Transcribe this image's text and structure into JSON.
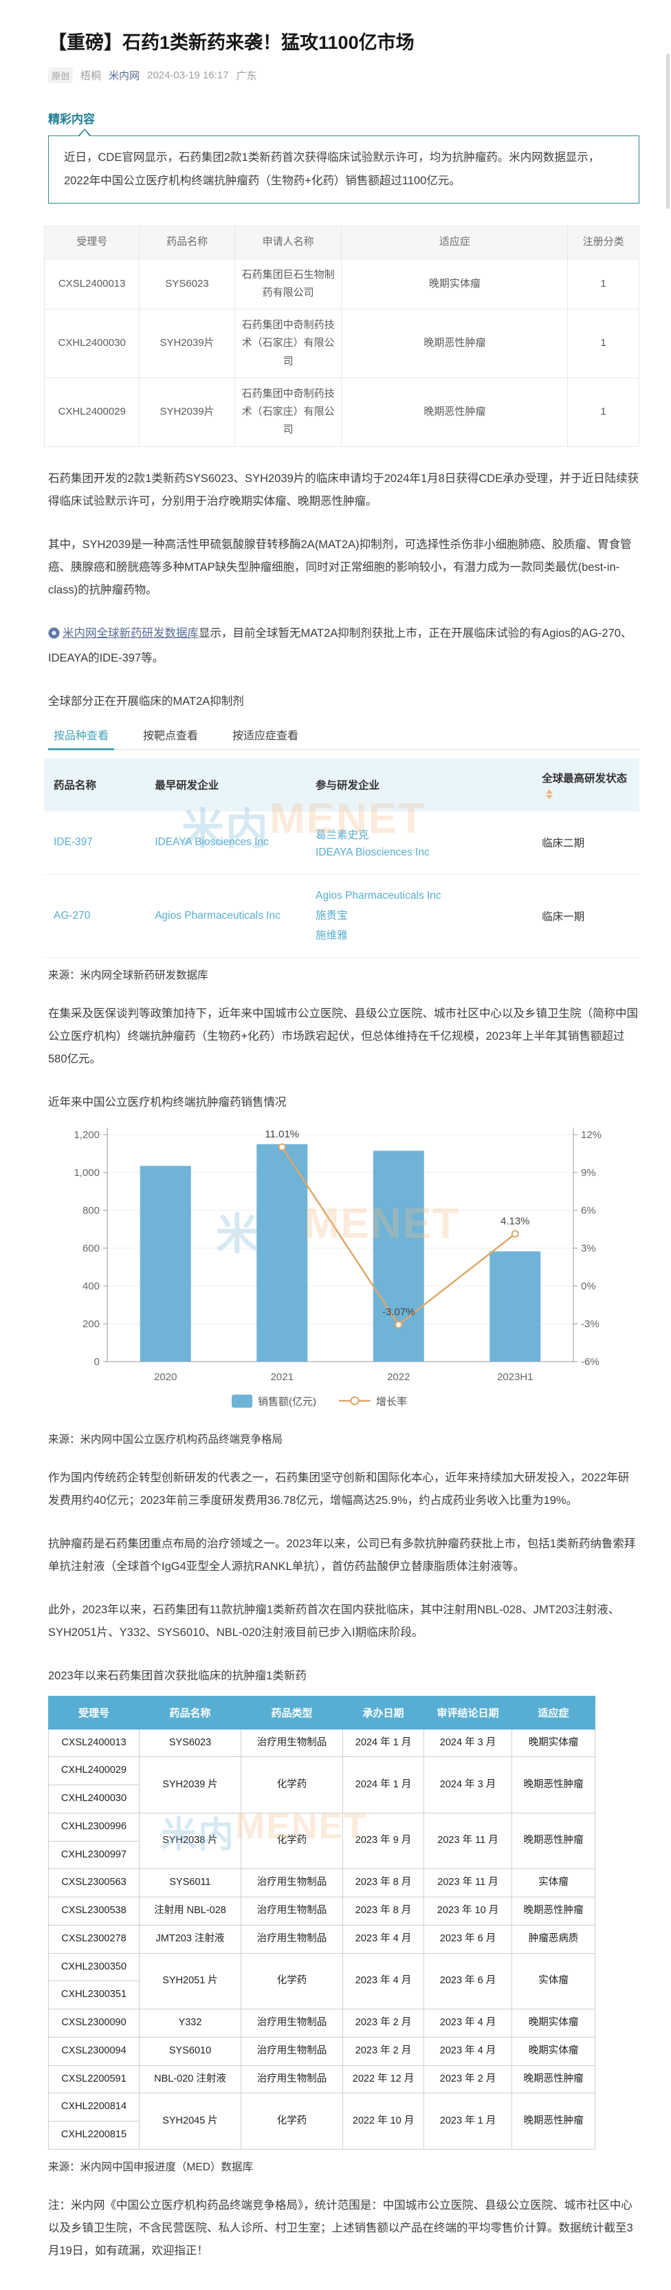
{
  "page": {
    "title": "【重磅】石药1类新药来袭！猛攻1100亿市场",
    "byline": {
      "tag": "原创",
      "author": "梧桐",
      "account": "米内网",
      "datetime": "2024-03-19 16:17",
      "location": "广东"
    }
  },
  "highlight": {
    "heading": "精彩内容",
    "text": "近日，CDE官网显示，石药集团2款1类新药首次获得临床试验默示许可，均为抗肿瘤药。米内网数据显示，2022年中国公立医疗机构终端抗肿瘤药（生物药+化药）销售额超过1100亿元。"
  },
  "table1": {
    "headers": [
      "受理号",
      "药品名称",
      "申请人名称",
      "适应症",
      "注册分类"
    ],
    "rows": [
      [
        "CXSL2400013",
        "SYS6023",
        "石药集团巨石生物制药有限公司",
        "晚期实体瘤",
        "1"
      ],
      [
        "CXHL2400030",
        "SYH2039片",
        "石药集团中奇制药技术（石家庄）有限公司",
        "晚期恶性肿瘤",
        "1"
      ],
      [
        "CXHL2400029",
        "SYH2039片",
        "石药集团中奇制药技术（石家庄）有限公司",
        "晚期恶性肿瘤",
        "1"
      ]
    ]
  },
  "paragraphs": {
    "p1": "石药集团开发的2款1类新药SYS6023、SYH2039片的临床申请均于2024年1月8日获得CDE承办受理，并于近日陆续获得临床试验默示许可，分别用于治疗晚期实体瘤、晚期恶性肿瘤。",
    "p2": "其中，SYH2039是一种高活性甲硫氨酸腺苷转移酶2A(MAT2A)抑制剂，可选择性杀伤非小细胞肺癌、胶质瘤、胃食管癌、胰腺癌和膀胱癌等多种MTAP缺失型肿瘤细胞，同时对正常细胞的影响较小，有潜力成为一款同类最优(best-in-class)的抗肿瘤药物。",
    "p3_link": "米内网全球新药研发数据库",
    "p3_rest": "显示，目前全球暂无MAT2A抑制剂获批上市，正在开展临床试验的有Agios的AG-270、IDEAYA的IDE-397等。",
    "p4": "在集采及医保谈判等政策加持下，近年来中国城市公立医院、县级公立医院、城市社区中心以及乡镇卫生院（简称中国公立医疗机构）终端抗肿瘤药（生物药+化药）市场跌宕起伏，但总体维持在千亿规模，2023年上半年其销售额超过580亿元。",
    "p5": "作为国内传统药企转型创新研发的代表之一，石药集团坚守创新和国际化本心，近年来持续加大研发投入，2022年研发费用约40亿元；2023年前三季度研发费用36.78亿元，增幅高达25.9%，约占成药业务收入比重为19%。",
    "p6": "抗肿瘤药是石药集团重点布局的治疗领域之一。2023年以来，公司已有多款抗肿瘤药获批上市，包括1类新药纳鲁索拜单抗注射液（全球首个IgG4亚型全人源抗RANKL单抗），首仿药盐酸伊立替康脂质体注射液等。",
    "p7": "此外，2023年以来，石药集团有11款抗肿瘤1类新药首次在国内获批临床，其中注射用NBL-028、JMT203注射液、SYH2051片、Y332、SYS6010、NBL-020注射液目前已步入I期临床阶段。",
    "note": "注：米内网《中国公立医疗机构药品终端竞争格局》，统计范围是：中国城市公立医院、县级公立医院、城市社区中心以及乡镇卫生院，不含民营医院、私人诊所、村卫生室；上述销售额以产品在终端的平均零售价计算。数据统计截至3月19日，如有疏漏，欢迎指正！"
  },
  "mat2a_section": {
    "title": "全球部分正在开展临床的MAT2A抑制剂",
    "tabs": [
      {
        "label": "按品种查看",
        "active": true
      },
      {
        "label": "按靶点查看",
        "active": false
      },
      {
        "label": "按适应症查看",
        "active": false
      }
    ],
    "table": {
      "headers": [
        "药品名称",
        "最早研发企业",
        "参与研发企业",
        "全球最高研发状态"
      ],
      "rows": [
        {
          "name": "IDE-397",
          "origin": "IDEAYA Biosciences Inc",
          "participants": [
            "葛兰素史克",
            "IDEAYA Biosciences Inc"
          ],
          "status": "临床二期"
        },
        {
          "name": "AG-270",
          "origin": "Agios Pharmaceuticals Inc",
          "participants": [
            "Agios Pharmaceuticals Inc",
            "施贵宝",
            "施维雅"
          ],
          "status": "临床一期"
        }
      ]
    },
    "source": "来源：米内网全球新药研发数据库"
  },
  "chart_data": {
    "type": "bar+line",
    "title": "近年来中国公立医疗机构终端抗肿瘤药销售情况",
    "categories": [
      "2020",
      "2021",
      "2022",
      "2023H1"
    ],
    "series": [
      {
        "name": "销售额(亿元)",
        "type": "bar",
        "values": [
          1035,
          1150,
          1115,
          583
        ],
        "color": "#6fb3d6"
      },
      {
        "name": "增长率",
        "type": "line",
        "values": [
          null,
          11.01,
          -3.07,
          4.13
        ],
        "labels": [
          "",
          "11.01%",
          "-3.07%",
          "4.13%"
        ],
        "color": "#dfa76c"
      }
    ],
    "left_axis": {
      "min": 0,
      "max": 1200,
      "step": 200,
      "labels": [
        "0",
        "200",
        "400",
        "600",
        "800",
        "1,000",
        "1,200"
      ]
    },
    "right_axis": {
      "min": -6,
      "max": 12,
      "step": 3,
      "labels": [
        "-6%",
        "-3%",
        "0%",
        "3%",
        "6%",
        "9%",
        "12%"
      ]
    },
    "grid": true,
    "legend_position": "bottom",
    "source": "来源：米内网中国公立医疗机构药品终端竞争格局"
  },
  "table3": {
    "title": "2023年以来石药集团首次获批临床的抗肿瘤1类新药",
    "headers": [
      "受理号",
      "药品名称",
      "药品类型",
      "承办日期",
      "审评结论日期",
      "适应症"
    ],
    "rows": [
      {
        "receipts": [
          "CXSL2400013"
        ],
        "name": "SYS6023",
        "type": "治疗用生物制品",
        "accepted": "2024 年 1 月",
        "concluded": "2024 年 3 月",
        "indication": "晚期实体瘤"
      },
      {
        "receipts": [
          "CXHL2400029",
          "CXHL2400030"
        ],
        "name": "SYH2039 片",
        "type": "化学药",
        "accepted": "2024 年 1 月",
        "concluded": "2024 年 3 月",
        "indication": "晚期恶性肿瘤"
      },
      {
        "receipts": [
          "CXHL2300996",
          "CXHL2300997"
        ],
        "name": "SYH2038 片",
        "type": "化学药",
        "accepted": "2023 年 9 月",
        "concluded": "2023 年 11 月",
        "indication": "晚期恶性肿瘤"
      },
      {
        "receipts": [
          "CXSL2300563"
        ],
        "name": "SYS6011",
        "type": "治疗用生物制品",
        "accepted": "2023 年 8 月",
        "concluded": "2023 年 11 月",
        "indication": "实体瘤"
      },
      {
        "receipts": [
          "CXSL2300538"
        ],
        "name": "注射用 NBL-028",
        "type": "治疗用生物制品",
        "accepted": "2023 年 8 月",
        "concluded": "2023 年 10 月",
        "indication": "晚期恶性肿瘤"
      },
      {
        "receipts": [
          "CXSL2300278"
        ],
        "name": "JMT203 注射液",
        "type": "治疗用生物制品",
        "accepted": "2023 年 4 月",
        "concluded": "2023 年 6 月",
        "indication": "肿瘤恶病质"
      },
      {
        "receipts": [
          "CXHL2300350",
          "CXHL2300351"
        ],
        "name": "SYH2051 片",
        "type": "化学药",
        "accepted": "2023 年 4 月",
        "concluded": "2023 年 6 月",
        "indication": "实体瘤"
      },
      {
        "receipts": [
          "CXSL2300090"
        ],
        "name": "Y332",
        "type": "治疗用生物制品",
        "accepted": "2023 年 2 月",
        "concluded": "2023 年 4 月",
        "indication": "晚期实体瘤"
      },
      {
        "receipts": [
          "CXSL2300094"
        ],
        "name": "SYS6010",
        "type": "治疗用生物制品",
        "accepted": "2023 年 2 月",
        "concluded": "2023 年 4 月",
        "indication": "晚期实体瘤"
      },
      {
        "receipts": [
          "CXSL2200591"
        ],
        "name": "NBL-020 注射液",
        "type": "治疗用生物制品",
        "accepted": "2022 年 12 月",
        "concluded": "2023 年 2 月",
        "indication": "晚期恶性肿瘤"
      },
      {
        "receipts": [
          "CXHL2200814",
          "CXHL2200815"
        ],
        "name": "SYH2045 片",
        "type": "化学药",
        "accepted": "2022 年 10 月",
        "concluded": "2023 年 1 月",
        "indication": "晚期恶性肿瘤"
      }
    ],
    "source": "来源：米内网中国申报进度（MED）数据库"
  },
  "watermark": {
    "cn": "米内",
    "en": "MENET"
  },
  "colors": {
    "teal": "#2e8596",
    "tab_active": "#45a3b4",
    "table3_header": "#57aed2",
    "link_blue": "#576b95",
    "table_link_blue": "#56aecf",
    "bar_blue": "#6fb3d6",
    "line_orange": "#dfa76c"
  }
}
